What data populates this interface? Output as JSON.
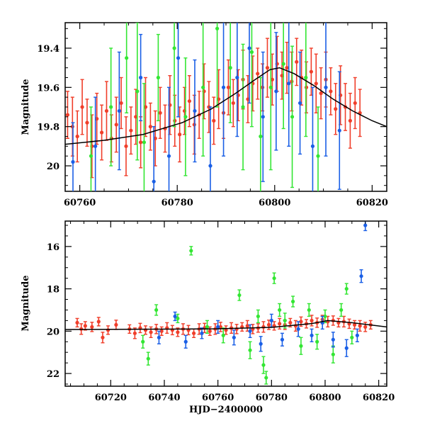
{
  "chart_data": [
    {
      "type": "scatter",
      "panel": "top",
      "title": "",
      "xlabel": "",
      "ylabel": "Magnitude",
      "xlim": [
        60757,
        60823
      ],
      "ylim": [
        20.13,
        19.27
      ],
      "y_inverted": true,
      "xticks": [
        60760,
        60780,
        60800,
        60820
      ],
      "xtick_labels": [
        "60760",
        "60780",
        "60800",
        "60820"
      ],
      "yticks": [
        19.4,
        19.6,
        19.8,
        20.0
      ],
      "ytick_labels": [
        "19.4",
        "19.6",
        "19.8",
        "20"
      ],
      "grid": false,
      "series_colors": {
        "red": "#f03e2a",
        "green": "#33e633",
        "blue": "#1a5fe6"
      },
      "model_curve": {
        "color": "#000000",
        "x": [
          60757,
          60765,
          60773,
          60781,
          60787,
          60792,
          60796,
          60799,
          60801,
          60804,
          60808,
          60812,
          60816,
          60820,
          60823
        ],
        "y": [
          19.89,
          19.87,
          19.84,
          19.78,
          19.71,
          19.63,
          19.56,
          19.51,
          19.5,
          19.53,
          19.59,
          19.66,
          19.72,
          19.77,
          19.8
        ]
      },
      "series": [
        {
          "color": "red",
          "x": [
            60757.5,
            60758.5,
            60759.5,
            60760.5,
            60761.5,
            60762.5,
            60763.5,
            60764.5,
            60765.5,
            60766.5,
            60767.5,
            60768.5,
            60769.5,
            60770.5,
            60771.5,
            60772.5,
            60773.5,
            60774.5,
            60775.5,
            60776.5,
            60777.5,
            60778.5,
            60779.5,
            60780.5,
            60781.5,
            60782.5,
            60783.5,
            60784.5,
            60785.5,
            60786.5,
            60787.5,
            60788.5,
            60789.5,
            60790.5,
            60791.5,
            60792.5,
            60793.5,
            60794.5,
            60795.5,
            60796.5,
            60797.5,
            60798.5,
            60799.5,
            60800.5,
            60801.5,
            60802.5,
            60803.5,
            60804.5,
            60805.5,
            60806.5,
            60807.5,
            60808.5,
            60809.5,
            60810.5,
            60811.5,
            60812.5,
            60813.5,
            60814.5,
            60815.5,
            60816.5,
            60817.5
          ],
          "y": [
            19.74,
            19.8,
            19.85,
            19.7,
            19.78,
            19.9,
            19.76,
            19.83,
            19.72,
            19.86,
            19.79,
            19.68,
            19.9,
            19.82,
            19.75,
            19.88,
            19.7,
            19.8,
            19.86,
            19.73,
            19.81,
            19.69,
            19.77,
            19.84,
            19.72,
            19.67,
            19.79,
            19.74,
            19.62,
            19.7,
            19.77,
            19.66,
            19.73,
            19.6,
            19.68,
            19.64,
            19.56,
            19.66,
            19.58,
            19.53,
            19.6,
            19.5,
            19.56,
            19.48,
            19.54,
            19.5,
            19.57,
            19.47,
            19.55,
            19.6,
            19.52,
            19.58,
            19.63,
            19.56,
            19.62,
            19.71,
            19.64,
            19.7,
            19.77,
            19.68,
            19.73
          ],
          "err": [
            0.12,
            0.15,
            0.13,
            0.14,
            0.12,
            0.16,
            0.13,
            0.14,
            0.15,
            0.12,
            0.14,
            0.13,
            0.15,
            0.12,
            0.14,
            0.13,
            0.15,
            0.12,
            0.14,
            0.13,
            0.12,
            0.15,
            0.13,
            0.14,
            0.12,
            0.13,
            0.15,
            0.12,
            0.14,
            0.13,
            0.12,
            0.15,
            0.13,
            0.14,
            0.12,
            0.13,
            0.15,
            0.12,
            0.14,
            0.13,
            0.12,
            0.15,
            0.13,
            0.14,
            0.12,
            0.13,
            0.15,
            0.12,
            0.14,
            0.13,
            0.12,
            0.15,
            0.13,
            0.14,
            0.12,
            0.13,
            0.15,
            0.12,
            0.14,
            0.13,
            0.12
          ]
        },
        {
          "color": "green",
          "x": [
            60762.3,
            60766.4,
            60769.6,
            60771.8,
            60773.2,
            60776.1,
            60779.4,
            60781.7,
            60785.3,
            60788.2,
            60790.9,
            60793.5,
            60795.3,
            60797.1,
            60799.2,
            60801.8,
            60803.6,
            60806.4,
            60808.9
          ],
          "y": [
            19.95,
            19.7,
            19.45,
            19.62,
            19.88,
            19.55,
            19.4,
            19.75,
            19.6,
            19.3,
            19.5,
            19.7,
            19.42,
            19.85,
            19.6,
            19.48,
            19.75,
            19.55,
            19.95
          ],
          "err": [
            0.25,
            0.3,
            0.28,
            0.35,
            0.3,
            0.22,
            0.4,
            0.3,
            0.35,
            0.4,
            0.28,
            0.32,
            0.38,
            0.3,
            0.42,
            0.33,
            0.36,
            0.3,
            0.25
          ]
        },
        {
          "color": "blue",
          "x": [
            60758.6,
            60763.2,
            60768.1,
            60772.5,
            60775.2,
            60778.3,
            60780.2,
            60783.6,
            60786.8,
            60789.5,
            60792.3,
            60794.8,
            60797.6,
            60800.3,
            60802.9,
            60805.2,
            60807.8,
            60810.5,
            60813.3
          ],
          "y": [
            19.98,
            19.9,
            19.72,
            19.55,
            20.08,
            19.95,
            19.45,
            19.72,
            20.0,
            19.6,
            19.55,
            19.4,
            19.75,
            19.62,
            19.58,
            19.68,
            19.9,
            19.6,
            19.82
          ],
          "err": [
            0.2,
            0.25,
            0.3,
            0.22,
            0.28,
            0.35,
            0.3,
            0.26,
            0.3,
            0.35,
            0.3,
            0.28,
            0.33,
            0.3,
            0.32,
            0.26,
            0.3,
            0.35,
            0.3
          ]
        }
      ]
    },
    {
      "type": "scatter",
      "panel": "bottom",
      "title": "",
      "xlabel": "HJD−2400000",
      "ylabel": "Magnitude",
      "xlim": [
        60703,
        60823
      ],
      "ylim": [
        22.6,
        14.8
      ],
      "y_inverted": true,
      "xticks": [
        60720,
        60740,
        60760,
        60780,
        60800,
        60820
      ],
      "xtick_labels": [
        "60720",
        "60740",
        "60760",
        "60780",
        "60800",
        "60820"
      ],
      "yticks": [
        16,
        18,
        20,
        22
      ],
      "ytick_labels": [
        "16",
        "18",
        "20",
        "22"
      ],
      "grid": false,
      "model_curve": {
        "color": "#000000",
        "x": [
          60703,
          60730,
          60760,
          60780,
          60795,
          60801,
          60810,
          60823
        ],
        "y": [
          19.92,
          19.91,
          19.89,
          19.82,
          19.64,
          19.5,
          19.6,
          19.8
        ]
      },
      "series": [
        {
          "color": "red",
          "x": [
            60707.5,
            60709,
            60710.5,
            60713,
            60715.5,
            60717,
            60719,
            60722,
            60727,
            60729,
            60731,
            60733,
            60735,
            60737,
            60739,
            60741,
            60743,
            60745,
            60747,
            60749,
            60751,
            60753,
            60755,
            60757,
            60759,
            60761,
            60763,
            60765,
            60767,
            60769,
            60771,
            60773,
            60775,
            60777,
            60779,
            60781,
            60783,
            60785,
            60787,
            60789,
            60791,
            60793,
            60795,
            60797,
            60799,
            60801,
            60803,
            60805,
            60807,
            60809,
            60811,
            60813,
            60815,
            60817
          ],
          "y": [
            19.6,
            19.9,
            19.75,
            19.8,
            19.55,
            20.3,
            19.95,
            19.7,
            19.9,
            20.1,
            19.85,
            19.95,
            20.05,
            19.9,
            20.0,
            19.85,
            19.95,
            20.05,
            19.9,
            19.95,
            20.1,
            19.9,
            19.85,
            20.0,
            19.9,
            19.8,
            19.95,
            19.85,
            19.9,
            19.8,
            19.75,
            19.9,
            19.85,
            19.8,
            19.7,
            19.75,
            19.65,
            19.7,
            19.6,
            19.75,
            19.55,
            19.65,
            19.5,
            19.6,
            19.45,
            19.55,
            19.5,
            19.6,
            19.55,
            19.65,
            19.7,
            19.75,
            19.8,
            19.7
          ],
          "err": [
            0.2,
            0.25,
            0.2,
            0.22,
            0.2,
            0.25,
            0.2,
            0.22,
            0.2,
            0.25,
            0.22,
            0.2,
            0.25,
            0.22,
            0.2,
            0.25,
            0.22,
            0.2,
            0.25,
            0.22,
            0.2,
            0.25,
            0.22,
            0.2,
            0.25,
            0.22,
            0.2,
            0.25,
            0.22,
            0.2,
            0.25,
            0.22,
            0.2,
            0.25,
            0.22,
            0.2,
            0.25,
            0.22,
            0.2,
            0.25,
            0.22,
            0.2,
            0.25,
            0.22,
            0.2,
            0.25,
            0.22,
            0.2,
            0.25,
            0.22,
            0.2,
            0.25,
            0.22,
            0.2
          ]
        },
        {
          "color": "green",
          "x": [
            60732,
            60734,
            60737,
            60745,
            60750,
            60756,
            60762,
            60768,
            60772,
            60775,
            60777,
            60778,
            60781,
            60783,
            60785,
            60788,
            60791,
            60794,
            60797,
            60800,
            60803,
            60806,
            60808,
            60810
          ],
          "y": [
            20.5,
            21.3,
            19.0,
            19.4,
            16.2,
            19.8,
            20.2,
            18.3,
            20.9,
            19.3,
            21.6,
            22.2,
            17.5,
            19.0,
            19.5,
            18.6,
            20.7,
            19.0,
            20.5,
            19.3,
            21.1,
            19.0,
            18.0,
            20.3
          ],
          "err": [
            0.3,
            0.3,
            0.25,
            0.2,
            0.2,
            0.3,
            0.35,
            0.25,
            0.4,
            0.3,
            0.4,
            0.3,
            0.25,
            0.3,
            0.35,
            0.25,
            0.4,
            0.3,
            0.35,
            0.3,
            0.4,
            0.3,
            0.25,
            0.3
          ]
        },
        {
          "color": "blue",
          "x": [
            60738,
            60744,
            60748,
            60754,
            60760,
            60766,
            60772,
            60776,
            60780,
            60784,
            60790,
            60795,
            60799,
            60803,
            60808,
            60812,
            60813.5,
            60815
          ],
          "y": [
            20.3,
            19.3,
            20.5,
            20.1,
            19.8,
            20.3,
            20.0,
            20.6,
            19.5,
            20.4,
            19.9,
            20.2,
            19.6,
            20.4,
            20.8,
            20.2,
            17.4,
            15.0
          ],
          "err": [
            0.3,
            0.2,
            0.3,
            0.25,
            0.3,
            0.35,
            0.3,
            0.35,
            0.3,
            0.3,
            0.35,
            0.3,
            0.3,
            0.35,
            0.4,
            0.3,
            0.3,
            0.25
          ]
        }
      ]
    }
  ]
}
